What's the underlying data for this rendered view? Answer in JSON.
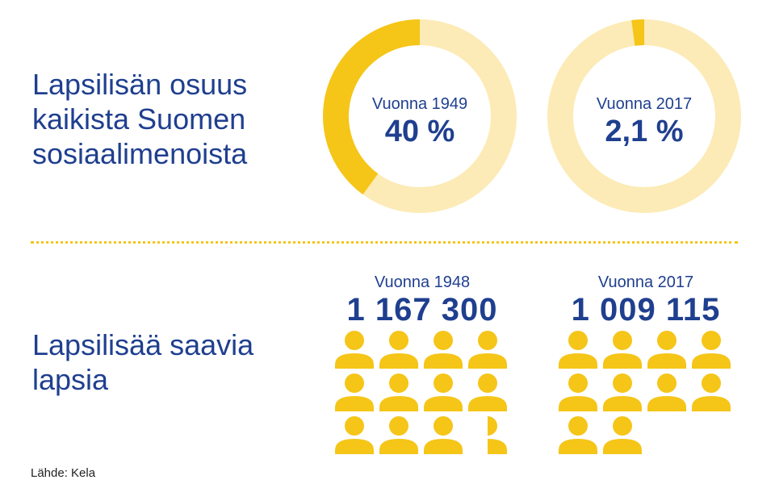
{
  "colors": {
    "accent": "#f5c518",
    "track": "#fcebb6",
    "text": "#1f3f8f"
  },
  "share_section": {
    "heading_lines": [
      "Lapsilisän osuus",
      "kaikista Suomen",
      "sosiaalimenoista"
    ]
  },
  "recipients_section": {
    "heading_lines": [
      "Lapsilisää saavia",
      "lapsia"
    ]
  },
  "icons": {
    "person": "person-icon"
  },
  "source": "Lähde: Kela",
  "chart_data": [
    {
      "type": "pie",
      "label": "Vuonna 1949",
      "value_text": "40 %",
      "value": 40,
      "max": 100
    },
    {
      "type": "pie",
      "label": "Vuonna 2017",
      "value_text": "2,1 %",
      "value": 2.1,
      "max": 100
    },
    {
      "type": "bar",
      "label": "Vuonna 1948",
      "value_text": "1 167 300",
      "value": 1167300,
      "icon_units": 11.5
    },
    {
      "type": "bar",
      "label": "Vuonna 2017",
      "value_text": "1 009 115",
      "value": 1009115,
      "icon_units": 10
    }
  ]
}
